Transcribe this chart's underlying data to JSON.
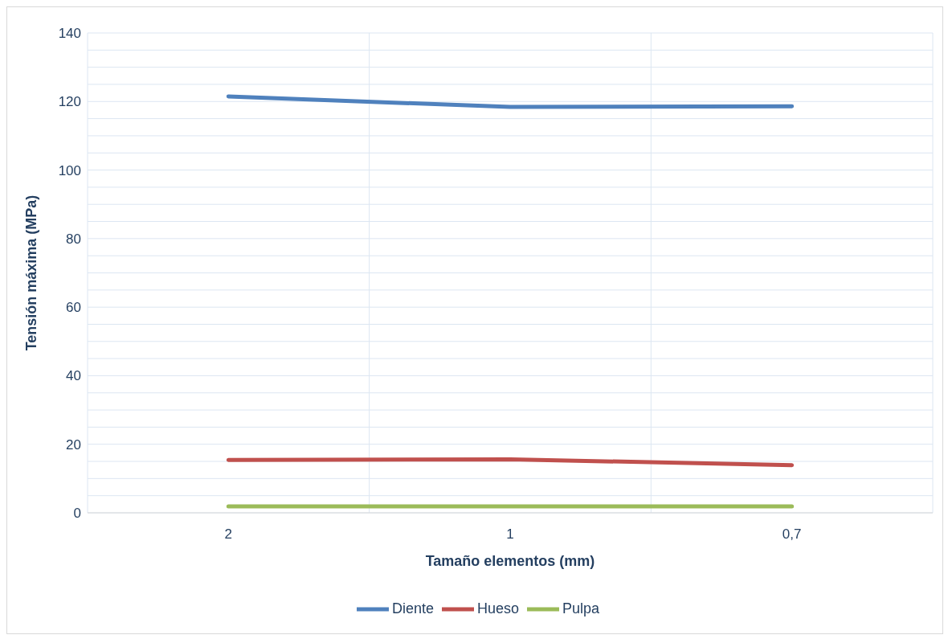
{
  "chart_data": {
    "type": "line",
    "xlabel": "Tamaño elementos (mm)",
    "ylabel": "Tensión máxima (MPa)",
    "categories": [
      "2",
      "1",
      "0,7"
    ],
    "series": [
      {
        "name": "Diente",
        "color": "#4f81bd",
        "values": [
          121.5,
          118.4,
          118.6
        ]
      },
      {
        "name": "Hueso",
        "color": "#c0504d",
        "values": [
          15.4,
          15.6,
          13.9
        ]
      },
      {
        "name": "Pulpa",
        "color": "#9bbb59",
        "values": [
          1.9,
          1.9,
          1.9
        ]
      }
    ],
    "ylim": [
      0,
      140
    ],
    "yticks": [
      0,
      {
        "value": 5,
        "label": null
      },
      {
        "value": 10,
        "label": null
      },
      {
        "value": 15,
        "label": null
      },
      20,
      {
        "value": 25,
        "label": null
      },
      {
        "value": 30,
        "label": null
      },
      {
        "value": 35,
        "label": null
      },
      40,
      {
        "value": 45,
        "label": null
      },
      {
        "value": 50,
        "label": null
      },
      {
        "value": 55,
        "label": null
      },
      60,
      {
        "value": 65,
        "label": null
      },
      {
        "value": 70,
        "label": null
      },
      {
        "value": 75,
        "label": null
      },
      80,
      {
        "value": 85,
        "label": null
      },
      {
        "value": 90,
        "label": null
      },
      {
        "value": 95,
        "label": null
      },
      100,
      {
        "value": 105,
        "label": null
      },
      {
        "value": 110,
        "label": null
      },
      {
        "value": 115,
        "label": null
      },
      120,
      {
        "value": 125,
        "label": null
      },
      {
        "value": 130,
        "label": null
      },
      {
        "value": 135,
        "label": null
      },
      140
    ],
    "grid": true,
    "legend": "bottom",
    "marker": "none",
    "line_style": "solid"
  }
}
